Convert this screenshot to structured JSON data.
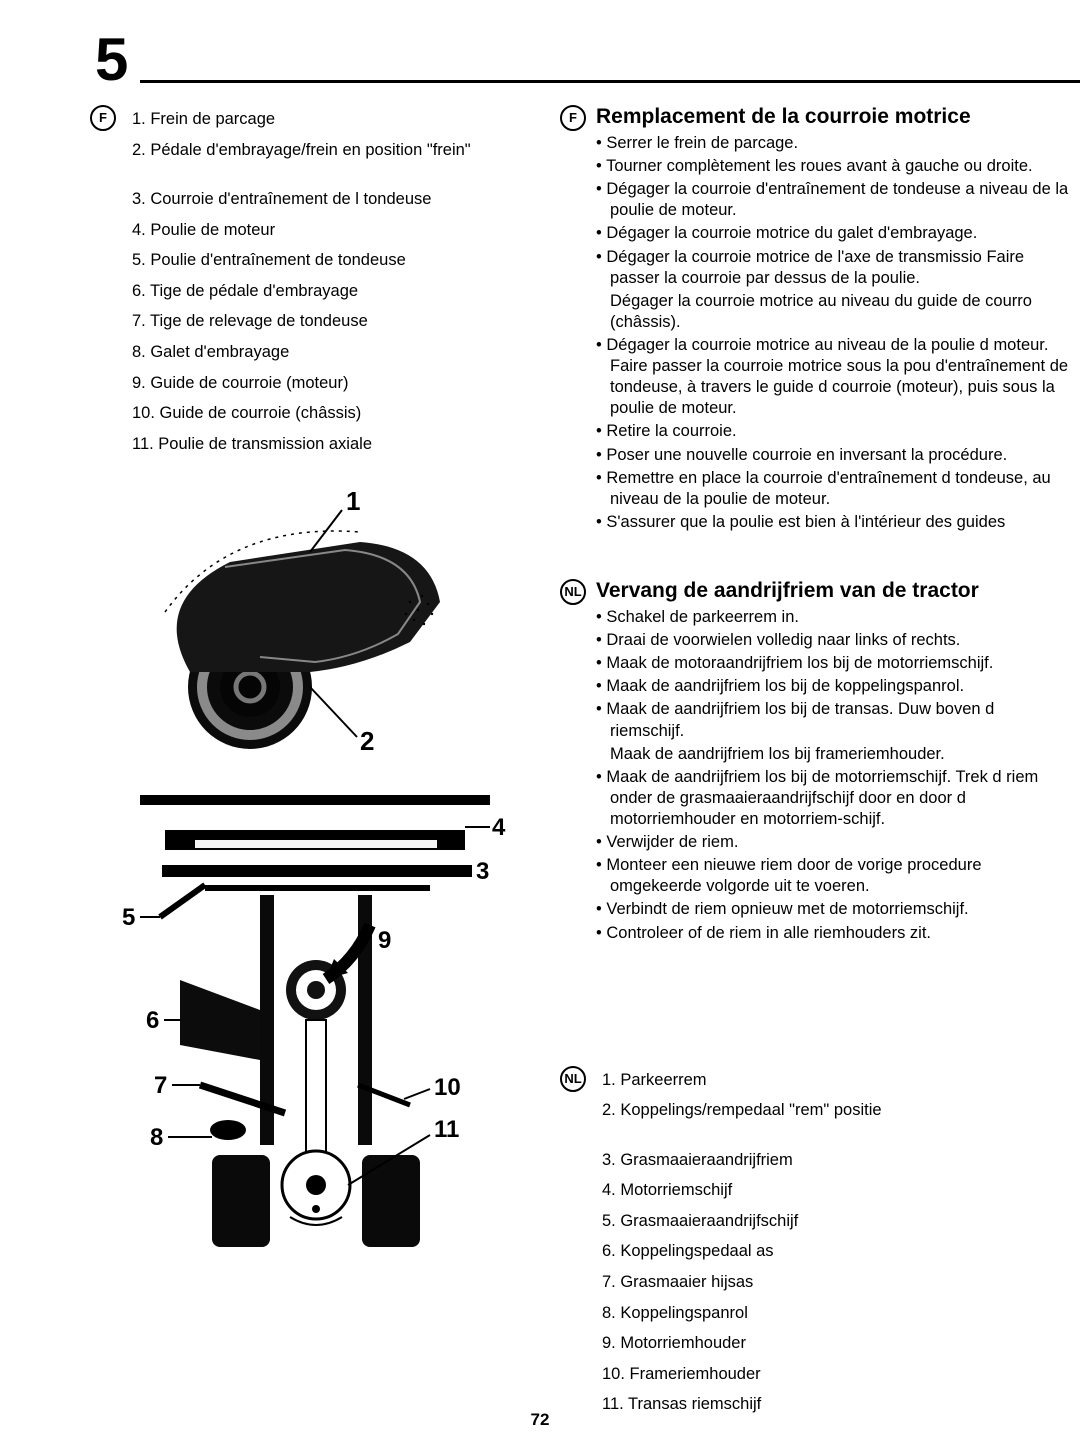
{
  "chapter": "5",
  "pageNumber": "72",
  "left": {
    "lang": "F",
    "items": [
      {
        "n": "1.",
        "t": "Frein de parcage",
        "gap": false
      },
      {
        "n": "2.",
        "t": "Pédale d'embrayage/frein en position \"frein\"",
        "gap": true
      },
      {
        "n": "3.",
        "t": "Courroie d'entraînement de l tondeuse",
        "gap": false
      },
      {
        "n": "4.",
        "t": "Poulie de moteur",
        "gap": false
      },
      {
        "n": "5.",
        "t": "Poulie d'entraînement de tondeuse",
        "gap": false
      },
      {
        "n": "6.",
        "t": "Tige de pédale d'embrayage",
        "gap": false
      },
      {
        "n": "7.",
        "t": "Tige de relevage de tondeuse",
        "gap": false
      },
      {
        "n": "8.",
        "t": "Galet d'embrayage",
        "gap": false
      },
      {
        "n": "9.",
        "t": "Guide de courroie (moteur)",
        "gap": false
      },
      {
        "n": "10.",
        "t": "Guide de courroie (châssis)",
        "gap": false
      },
      {
        "n": "11.",
        "t": "Poulie de transmission axiale",
        "gap": false
      }
    ],
    "fig1": {
      "labels": [
        "1",
        "2"
      ]
    },
    "fig2": {
      "labels": [
        "3",
        "4",
        "5",
        "6",
        "7",
        "8",
        "9",
        "10",
        "11"
      ]
    }
  },
  "rightF": {
    "lang": "F",
    "title": "Remplacement de la courroie motrice",
    "bullets": [
      {
        "t": "Serrer le frein de parcage."
      },
      {
        "t": "Tourner complètement les roues avant à gauche ou droite."
      },
      {
        "t": "Dégager la courroie d'entraînement de tondeuse a niveau de la poulie de moteur."
      },
      {
        "t": "Dégager la courroie motrice du galet d'embrayage."
      },
      {
        "t": "Dégager la courroie motrice de l'axe de transmissio Faire passer la courroie par dessus de la poulie.",
        "sub": [
          "Dégager la courroie motrice au niveau du guide de courro (châssis)."
        ]
      },
      {
        "t": "Dégager la courroie motrice au niveau de la poulie d moteur. Faire passer la courroie motrice sous la pou d'entraînement de tondeuse, à travers le guide d courroie (moteur), puis sous la poulie de moteur."
      },
      {
        "t": "Retire la courroie."
      },
      {
        "t": "Poser une nouvelle courroie en inversant la procédure."
      },
      {
        "t": "Remettre en place la courroie d'entraînement d tondeuse, au niveau de la poulie de moteur."
      },
      {
        "t": "S'assurer que la poulie est bien à l'intérieur des guides"
      }
    ]
  },
  "rightNL": {
    "lang": "NL",
    "title": "Vervang de aandrijfriem van de tractor",
    "bullets": [
      {
        "t": "Schakel de parkeerrem in."
      },
      {
        "t": "Draai de voorwielen volledig naar links of rechts."
      },
      {
        "t": "Maak de motoraandrijfriem los bij de motorriemschijf."
      },
      {
        "t": "Maak de aandrijfriem los bij de koppelingspanrol."
      },
      {
        "t": "Maak de aandrijfriem los bij de transas. Duw boven d riemschijf.",
        "sub": [
          "Maak de aandrijfriem los bij frameriemhouder."
        ]
      },
      {
        "t": "Maak de aandrijfriem los bij de motorriemschijf. Trek d riem onder de grasmaaieraandrijfschijf door en door d motorriemhouder en motorriem-schijf."
      },
      {
        "t": "Verwijder de riem."
      },
      {
        "t": "Monteer een nieuwe riem door de vorige procedure omgekeerde volgorde uit te voeren."
      },
      {
        "t": "Verbindt de riem opnieuw met de motorriemschijf."
      },
      {
        "t": "Controleer of de riem in alle riemhouders zit."
      }
    ]
  },
  "rightList": {
    "lang": "NL",
    "items": [
      {
        "n": "1.",
        "t": "Parkeerrem",
        "gap": false
      },
      {
        "n": "2.",
        "t": "Koppelings/rempedaal \"rem\" positie",
        "gap": true
      },
      {
        "n": "3.",
        "t": "Grasmaaieraandrijfriem",
        "gap": false
      },
      {
        "n": "4.",
        "t": "Motorriemschijf",
        "gap": false
      },
      {
        "n": "5.",
        "t": "Grasmaaieraandrijfschijf",
        "gap": false
      },
      {
        "n": "6.",
        "t": "Koppelingspedaal as",
        "gap": false
      },
      {
        "n": "7.",
        "t": "Grasmaaier hijsas",
        "gap": false
      },
      {
        "n": "8.",
        "t": "Koppelingspanrol",
        "gap": false
      },
      {
        "n": "9.",
        "t": "Motorriemhouder",
        "gap": false
      },
      {
        "n": "10.",
        "t": "Frameriemhouder",
        "gap": false
      },
      {
        "n": "11.",
        "t": "Transas riemschijf",
        "gap": false
      }
    ]
  }
}
